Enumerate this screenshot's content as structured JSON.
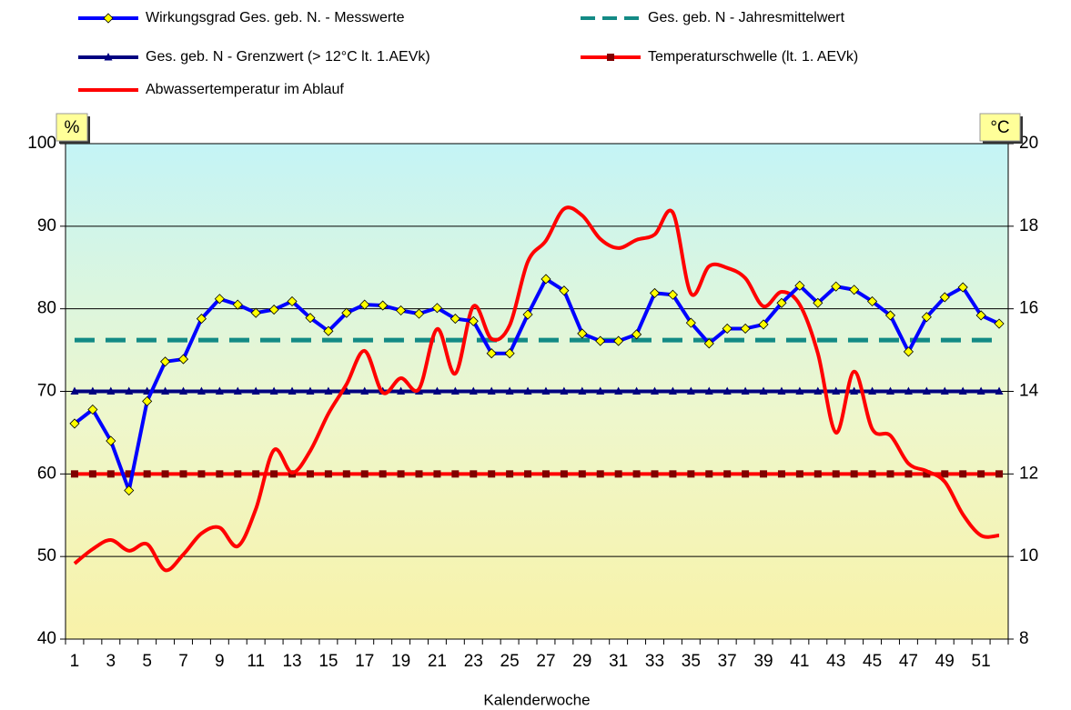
{
  "chart_data": {
    "type": "line",
    "xlabel": "Kalenderwoche",
    "ylabel": "%",
    "y2label": "°C",
    "categories": [
      1,
      null,
      3,
      null,
      5,
      null,
      7,
      null,
      9,
      null,
      11,
      null,
      13,
      null,
      15,
      null,
      17,
      null,
      19,
      null,
      21,
      null,
      23,
      null,
      25,
      null,
      27,
      null,
      29,
      null,
      31,
      null,
      33,
      null,
      35,
      null,
      37,
      null,
      39,
      null,
      41,
      null,
      43,
      null,
      45,
      null,
      47,
      null,
      49,
      null,
      51,
      null
    ],
    "ylim": [
      40,
      100
    ],
    "yticks": [
      40,
      50,
      60,
      70,
      80,
      90,
      100
    ],
    "y2lim": [
      8,
      20
    ],
    "y2ticks": [
      8,
      10,
      12,
      14,
      16,
      18,
      20
    ],
    "grid": true,
    "legend": "top",
    "series": [
      {
        "name": "Wirkungsgrad Ges. geb. N. - Messwerte",
        "color": "#0000ff",
        "marker": "diamond",
        "values": [
          66.1,
          67.8,
          64.0,
          58.0,
          68.8,
          73.6,
          73.9,
          78.8,
          81.2,
          80.5,
          79.5,
          79.9,
          80.9,
          78.9,
          77.3,
          79.5,
          80.5,
          80.4,
          79.8,
          79.4,
          80.1,
          78.8,
          78.5,
          74.6,
          74.6,
          79.3,
          83.6,
          82.2,
          77.0,
          76.1,
          76.1,
          76.9,
          81.9,
          81.7,
          78.3,
          75.8,
          77.6,
          77.6,
          78.1,
          80.7,
          82.8,
          80.7,
          82.7,
          82.3,
          80.9,
          79.2,
          74.8,
          79.0,
          81.4,
          82.6,
          79.2,
          78.2
        ]
      },
      {
        "name": "Ges. geb. N - Jahresmittelwert",
        "color": "#138a85",
        "dash": true,
        "values": [
          76.2,
          76.2,
          76.2,
          76.2,
          76.2,
          76.2,
          76.2,
          76.2,
          76.2,
          76.2,
          76.2,
          76.2,
          76.2,
          76.2,
          76.2,
          76.2,
          76.2,
          76.2,
          76.2,
          76.2,
          76.2,
          76.2,
          76.2,
          76.2,
          76.2,
          76.2,
          76.2,
          76.2,
          76.2,
          76.2,
          76.2,
          76.2,
          76.2,
          76.2,
          76.2,
          76.2,
          76.2,
          76.2,
          76.2,
          76.2,
          76.2,
          76.2,
          76.2,
          76.2,
          76.2,
          76.2,
          76.2,
          76.2,
          76.2,
          76.2,
          76.2,
          76.2
        ]
      },
      {
        "name": "Ges. geb. N - Grenzwert (> 12°C lt. 1.AEVk)",
        "color": "#000080",
        "marker": "triangle",
        "values": [
          70,
          70,
          70,
          70,
          70,
          70,
          70,
          70,
          70,
          70,
          70,
          70,
          70,
          70,
          70,
          70,
          70,
          70,
          70,
          70,
          70,
          70,
          70,
          70,
          70,
          70,
          70,
          70,
          70,
          70,
          70,
          70,
          70,
          70,
          70,
          70,
          70,
          70,
          70,
          70,
          70,
          70,
          70,
          70,
          70,
          70,
          70,
          70,
          70,
          70,
          70,
          70
        ]
      },
      {
        "name": "Temperaturschwelle (lt. 1. AEVk)",
        "color": "#ff0000",
        "marker": "square",
        "marker_color": "#800000",
        "axis": "y2",
        "values": [
          12,
          12,
          12,
          12,
          12,
          12,
          12,
          12,
          12,
          12,
          12,
          12,
          12,
          12,
          12,
          12,
          12,
          12,
          12,
          12,
          12,
          12,
          12,
          12,
          12,
          12,
          12,
          12,
          12,
          12,
          12,
          12,
          12,
          12,
          12,
          12,
          12,
          12,
          12,
          12,
          12,
          12,
          12,
          12,
          12,
          12,
          12,
          12,
          12,
          12,
          12,
          12
        ]
      },
      {
        "name": "Abwassertemperatur im Ablauf",
        "color": "#ff0000",
        "smooth": true,
        "axis": "y2",
        "values": [
          9.83,
          10.18,
          10.4,
          10.14,
          10.3,
          9.67,
          10.05,
          10.56,
          10.7,
          10.25,
          11.15,
          12.58,
          12.03,
          12.56,
          13.46,
          14.17,
          14.98,
          13.97,
          14.32,
          14.06,
          15.51,
          14.43,
          16.06,
          15.27,
          15.6,
          17.14,
          17.65,
          18.42,
          18.26,
          17.69,
          17.47,
          17.67,
          17.8,
          18.33,
          16.37,
          17.03,
          16.99,
          16.74,
          16.06,
          16.41,
          16.1,
          14.92,
          13.0,
          14.48,
          13.09,
          12.93,
          12.25,
          12.07,
          11.81,
          11.02,
          10.51,
          10.51
        ]
      }
    ]
  }
}
